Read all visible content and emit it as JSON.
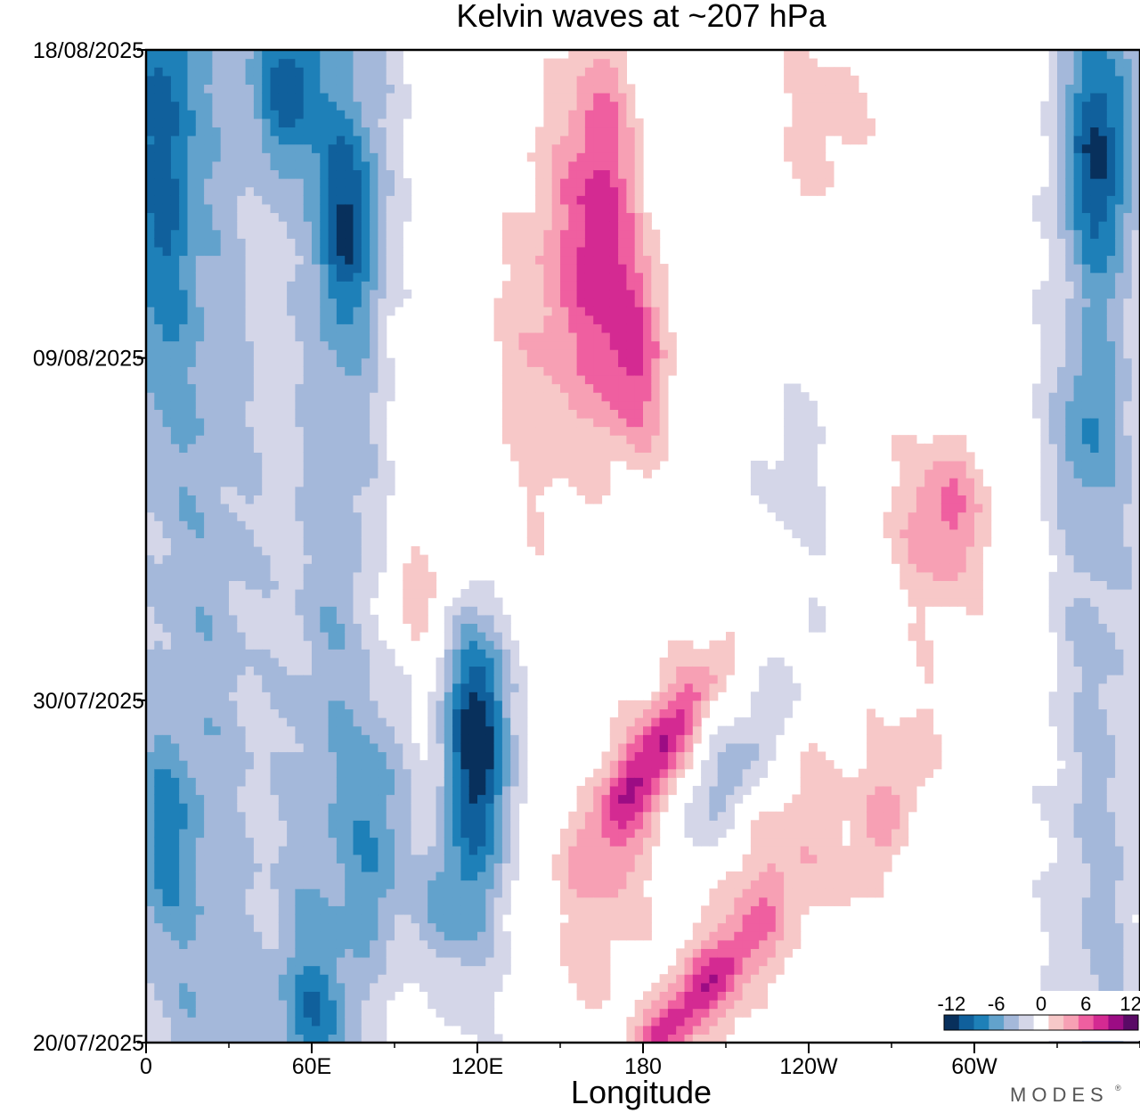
{
  "chart_data": {
    "type": "heatmap",
    "subtype": "hovmoller-filled-contour",
    "title": "Kelvin waves at ~207 hPa",
    "xlabel": "Longitude",
    "ylabel": "",
    "x_ticks": [
      {
        "lon": 0,
        "label": "0"
      },
      {
        "lon": 60,
        "label": "60E"
      },
      {
        "lon": 120,
        "label": "120E"
      },
      {
        "lon": 180,
        "label": "180"
      },
      {
        "lon": 240,
        "label": "120W"
      },
      {
        "lon": 300,
        "label": "60W"
      }
    ],
    "xlim": [
      0,
      360
    ],
    "x_minor_step": 30,
    "y_ticks": [
      {
        "day": 0,
        "label": "20/07/2025"
      },
      {
        "day": 10,
        "label": "30/07/2025"
      },
      {
        "day": 20,
        "label": "09/08/2025"
      },
      {
        "day": 29,
        "label": "18/08/2025"
      }
    ],
    "ylim_days": [
      0,
      29
    ],
    "colorbar": {
      "levels": [
        -12,
        -10,
        -8,
        -6,
        -4,
        -2,
        0,
        2,
        4,
        6,
        8,
        10,
        12
      ],
      "colors": [
        "#08305c",
        "#10609c",
        "#1e80b8",
        "#62a2cc",
        "#a4b8da",
        "#d4d6e8",
        "#ffffff",
        "#f7c8c8",
        "#f7a0b4",
        "#ef5fa0",
        "#d42a92",
        "#9c0c84",
        "#5a0a66"
      ],
      "tick_labels": [
        {
          "value": -12,
          "label": "-12"
        },
        {
          "value": -6,
          "label": "-6"
        },
        {
          "value": 0,
          "label": "0"
        },
        {
          "value": 6,
          "label": "6"
        },
        {
          "value": 12,
          "label": "12"
        }
      ]
    },
    "features": [
      {
        "kind": "neg",
        "lon": 5,
        "day": 26,
        "slope": 0,
        "len": 7,
        "amp": 7
      },
      {
        "kind": "neg",
        "lon": 5,
        "day": 6,
        "slope": 0,
        "len": 3,
        "amp": 5
      },
      {
        "kind": "neg",
        "lon": 52,
        "day": 28,
        "slope": 0,
        "len": 2.5,
        "amp": 9
      },
      {
        "kind": "neg",
        "lon": 72,
        "day": 24,
        "slope": 0,
        "len": 3,
        "amp": 7
      },
      {
        "kind": "neg",
        "lon": 85,
        "day": 6,
        "slope": 0,
        "len": 4,
        "amp": 6
      },
      {
        "kind": "neg",
        "lon": 108,
        "day": 4,
        "slope": 0,
        "len": 2,
        "amp": 5
      },
      {
        "kind": "neg",
        "lon": 120,
        "day": 9,
        "slope": 0,
        "len": 3.5,
        "amp": 11
      },
      {
        "kind": "neg",
        "lon": 60,
        "day": 1,
        "slope": 0,
        "len": 2,
        "amp": 4
      },
      {
        "kind": "neg",
        "lon": 345,
        "day": 26,
        "slope": 0,
        "len": 3.5,
        "amp": 8
      },
      {
        "kind": "neg",
        "lon": 340,
        "day": 18,
        "slope": 0,
        "len": 2.5,
        "amp": 4
      },
      {
        "kind": "neg",
        "lon": 215,
        "day": 8,
        "slope": -0.3,
        "len": 3,
        "amp": 5
      },
      {
        "kind": "pos",
        "lon": 165,
        "day": 24,
        "slope": 0,
        "len": 5,
        "amp": 6
      },
      {
        "kind": "pos",
        "lon": 178,
        "day": 20,
        "slope": 0,
        "len": 3,
        "amp": 7
      },
      {
        "kind": "pos",
        "lon": 185,
        "day": 8.5,
        "slope": -0.4,
        "len": 3,
        "amp": 7
      },
      {
        "kind": "pos",
        "lon": 195,
        "day": 1,
        "slope": -0.5,
        "len": 2.5,
        "amp": 7
      },
      {
        "kind": "pos",
        "lon": 270,
        "day": 7,
        "slope": -0.2,
        "len": 3,
        "amp": 4
      },
      {
        "kind": "pos",
        "lon": 290,
        "day": 15.5,
        "slope": 0,
        "len": 2,
        "amp": 4
      },
      {
        "kind": "pos",
        "lon": 97,
        "day": 13,
        "slope": 0,
        "len": 1.5,
        "amp": 4
      }
    ]
  },
  "logo": {
    "text": "MODES",
    "mark": "®"
  }
}
